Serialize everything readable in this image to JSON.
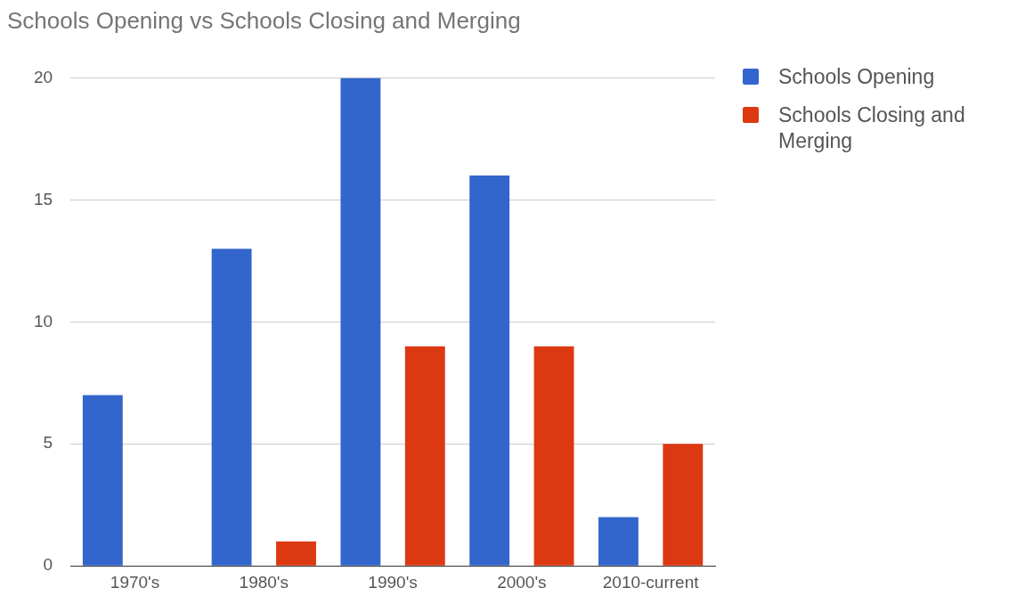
{
  "chart_data": {
    "type": "bar",
    "title": "Schools Opening vs Schools Closing and Merging",
    "categories": [
      "1970's",
      "1980's",
      "1990's",
      "2000's",
      "2010-current"
    ],
    "series": [
      {
        "name": "Schools Opening",
        "color": "#3366cc",
        "values": [
          7,
          13,
          20,
          16,
          2
        ]
      },
      {
        "name": "Schools Closing and Merging",
        "color": "#dc3912",
        "values": [
          0,
          1,
          9,
          9,
          5
        ]
      }
    ],
    "ylim": [
      0,
      20
    ],
    "yticks": [
      0,
      5,
      10,
      15,
      20
    ],
    "grid": "y",
    "legend": "right"
  }
}
